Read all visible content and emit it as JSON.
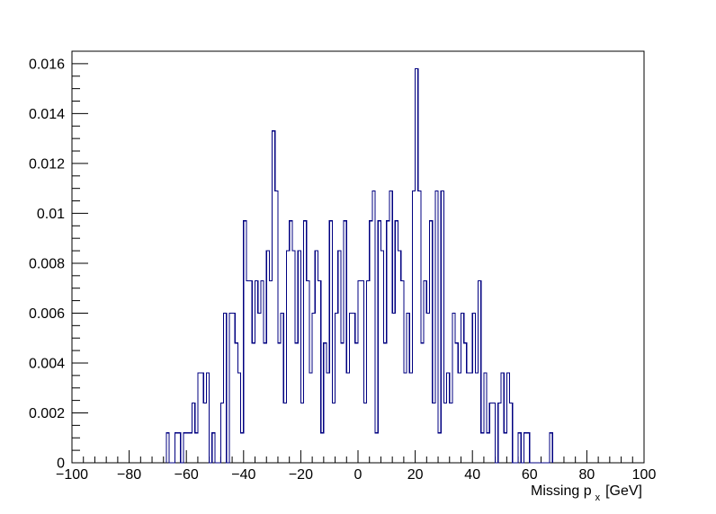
{
  "chart_data": {
    "type": "histogram",
    "xlabel": "Missing p",
    "xlabel_subscript": "x",
    "xlabel_unit": "[GeV]",
    "ylabel": "",
    "title": "",
    "xlim": [
      -100,
      100
    ],
    "ylim": [
      0,
      0.0165
    ],
    "x_ticks": [
      "−100",
      "−80",
      "−60",
      "−40",
      "−20",
      "0",
      "20",
      "40",
      "60",
      "80",
      "100"
    ],
    "x_tick_values": [
      -100,
      -80,
      -60,
      -40,
      -20,
      0,
      20,
      40,
      60,
      80,
      100
    ],
    "y_ticks": [
      "0",
      "0.002",
      "0.004",
      "0.006",
      "0.008",
      "0.01",
      "0.012",
      "0.014",
      "0.016"
    ],
    "y_tick_values": [
      0,
      0.002,
      0.004,
      0.006,
      0.008,
      0.01,
      0.012,
      0.014,
      0.016
    ],
    "line_color": "#000080",
    "grid": false,
    "bin_width": 1,
    "bins": [
      {
        "x": -67,
        "y": 0.0012
      },
      {
        "x": -66,
        "y": 0
      },
      {
        "x": -65,
        "y": 0
      },
      {
        "x": -64,
        "y": 0.0012
      },
      {
        "x": -63,
        "y": 0.0012
      },
      {
        "x": -62,
        "y": 0
      },
      {
        "x": -61,
        "y": 0.0012
      },
      {
        "x": -60,
        "y": 0.0012
      },
      {
        "x": -59,
        "y": 0.0012
      },
      {
        "x": -58,
        "y": 0.0024
      },
      {
        "x": -57,
        "y": 0.0012
      },
      {
        "x": -56,
        "y": 0.0036
      },
      {
        "x": -55,
        "y": 0.0036
      },
      {
        "x": -54,
        "y": 0.0024
      },
      {
        "x": -53,
        "y": 0.0036
      },
      {
        "x": -52,
        "y": 0
      },
      {
        "x": -51,
        "y": 0.0012
      },
      {
        "x": -50,
        "y": 0
      },
      {
        "x": -49,
        "y": 0
      },
      {
        "x": -48,
        "y": 0.0024
      },
      {
        "x": -47,
        "y": 0.006
      },
      {
        "x": -46,
        "y": 0
      },
      {
        "x": -45,
        "y": 0.006
      },
      {
        "x": -44,
        "y": 0.006
      },
      {
        "x": -43,
        "y": 0.0048
      },
      {
        "x": -42,
        "y": 0.0036
      },
      {
        "x": -41,
        "y": 0.0012
      },
      {
        "x": -40,
        "y": 0.0097
      },
      {
        "x": -39,
        "y": 0.0073
      },
      {
        "x": -38,
        "y": 0.0073
      },
      {
        "x": -37,
        "y": 0.0048
      },
      {
        "x": -36,
        "y": 0.0073
      },
      {
        "x": -35,
        "y": 0.006
      },
      {
        "x": -34,
        "y": 0.0073
      },
      {
        "x": -33,
        "y": 0.0048
      },
      {
        "x": -32,
        "y": 0.0085
      },
      {
        "x": -31,
        "y": 0.0073
      },
      {
        "x": -30,
        "y": 0.0133
      },
      {
        "x": -29,
        "y": 0.0109
      },
      {
        "x": -28,
        "y": 0.0048
      },
      {
        "x": -27,
        "y": 0.006
      },
      {
        "x": -26,
        "y": 0.0024
      },
      {
        "x": -25,
        "y": 0.0085
      },
      {
        "x": -24,
        "y": 0.0097
      },
      {
        "x": -23,
        "y": 0.0085
      },
      {
        "x": -22,
        "y": 0.0048
      },
      {
        "x": -21,
        "y": 0.0085
      },
      {
        "x": -20,
        "y": 0.0024
      },
      {
        "x": -19,
        "y": 0.0097
      },
      {
        "x": -18,
        "y": 0.0073
      },
      {
        "x": -17,
        "y": 0.0036
      },
      {
        "x": -16,
        "y": 0.006
      },
      {
        "x": -15,
        "y": 0.0085
      },
      {
        "x": -14,
        "y": 0.0073
      },
      {
        "x": -13,
        "y": 0.0012
      },
      {
        "x": -12,
        "y": 0.0048
      },
      {
        "x": -11,
        "y": 0.0036
      },
      {
        "x": -10,
        "y": 0.0097
      },
      {
        "x": -9,
        "y": 0.0024
      },
      {
        "x": -8,
        "y": 0.006
      },
      {
        "x": -7,
        "y": 0.0085
      },
      {
        "x": -6,
        "y": 0.0048
      },
      {
        "x": -5,
        "y": 0.0097
      },
      {
        "x": -4,
        "y": 0.0036
      },
      {
        "x": -3,
        "y": 0.006
      },
      {
        "x": -2,
        "y": 0.006
      },
      {
        "x": -1,
        "y": 0.0048
      },
      {
        "x": 0,
        "y": 0.0073
      },
      {
        "x": 1,
        "y": 0.0073
      },
      {
        "x": 2,
        "y": 0.0024
      },
      {
        "x": 3,
        "y": 0.0073
      },
      {
        "x": 4,
        "y": 0.0097
      },
      {
        "x": 5,
        "y": 0.0109
      },
      {
        "x": 6,
        "y": 0.0012
      },
      {
        "x": 7,
        "y": 0.0097
      },
      {
        "x": 8,
        "y": 0.0085
      },
      {
        "x": 9,
        "y": 0.0048
      },
      {
        "x": 10,
        "y": 0.0097
      },
      {
        "x": 11,
        "y": 0.0109
      },
      {
        "x": 12,
        "y": 0.006
      },
      {
        "x": 13,
        "y": 0.0097
      },
      {
        "x": 14,
        "y": 0.0085
      },
      {
        "x": 15,
        "y": 0.0073
      },
      {
        "x": 16,
        "y": 0.0036
      },
      {
        "x": 17,
        "y": 0.006
      },
      {
        "x": 18,
        "y": 0.0036
      },
      {
        "x": 19,
        "y": 0.0109
      },
      {
        "x": 20,
        "y": 0.0158
      },
      {
        "x": 21,
        "y": 0.0109
      },
      {
        "x": 22,
        "y": 0.0048
      },
      {
        "x": 23,
        "y": 0.0073
      },
      {
        "x": 24,
        "y": 0.006
      },
      {
        "x": 25,
        "y": 0.0097
      },
      {
        "x": 26,
        "y": 0.0024
      },
      {
        "x": 27,
        "y": 0.0109
      },
      {
        "x": 28,
        "y": 0.0012
      },
      {
        "x": 29,
        "y": 0.0109
      },
      {
        "x": 30,
        "y": 0.0024
      },
      {
        "x": 31,
        "y": 0.0036
      },
      {
        "x": 32,
        "y": 0.0024
      },
      {
        "x": 33,
        "y": 0.006
      },
      {
        "x": 34,
        "y": 0.0048
      },
      {
        "x": 35,
        "y": 0.0036
      },
      {
        "x": 36,
        "y": 0.006
      },
      {
        "x": 37,
        "y": 0.0048
      },
      {
        "x": 38,
        "y": 0.0036
      },
      {
        "x": 39,
        "y": 0.0036
      },
      {
        "x": 40,
        "y": 0.006
      },
      {
        "x": 41,
        "y": 0.0036
      },
      {
        "x": 42,
        "y": 0.0073
      },
      {
        "x": 43,
        "y": 0.0012
      },
      {
        "x": 44,
        "y": 0.0036
      },
      {
        "x": 45,
        "y": 0.0012
      },
      {
        "x": 46,
        "y": 0.0024
      },
      {
        "x": 47,
        "y": 0.0024
      },
      {
        "x": 48,
        "y": 0
      },
      {
        "x": 49,
        "y": 0.0024
      },
      {
        "x": 50,
        "y": 0.0036
      },
      {
        "x": 51,
        "y": 0.0012
      },
      {
        "x": 52,
        "y": 0.0036
      },
      {
        "x": 53,
        "y": 0.0024
      },
      {
        "x": 54,
        "y": 0
      },
      {
        "x": 55,
        "y": 0
      },
      {
        "x": 56,
        "y": 0.0012
      },
      {
        "x": 57,
        "y": 0
      },
      {
        "x": 58,
        "y": 0.0012
      },
      {
        "x": 59,
        "y": 0.0012
      },
      {
        "x": 60,
        "y": 0
      },
      {
        "x": 61,
        "y": 0
      },
      {
        "x": 62,
        "y": 0
      },
      {
        "x": 63,
        "y": 0
      },
      {
        "x": 64,
        "y": 0
      },
      {
        "x": 65,
        "y": 0
      },
      {
        "x": 66,
        "y": 0
      },
      {
        "x": 67,
        "y": 0.0012
      }
    ]
  }
}
